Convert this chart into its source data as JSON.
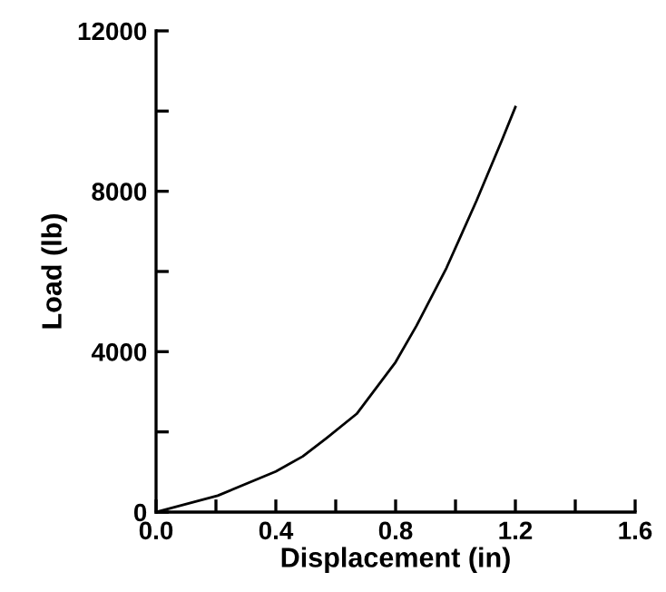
{
  "chart_data": {
    "type": "line",
    "xlabel": "Displacement (in)",
    "ylabel": "Load (lb)",
    "xlim": [
      0,
      1.6
    ],
    "ylim": [
      0,
      12000
    ],
    "xticks": [
      {
        "value": 0,
        "label": "0.0"
      },
      {
        "value": 0.2,
        "label": null
      },
      {
        "value": 0.4,
        "label": "0.4"
      },
      {
        "value": 0.6,
        "label": null
      },
      {
        "value": 0.8,
        "label": "0.8"
      },
      {
        "value": 1.0,
        "label": null
      },
      {
        "value": 1.2,
        "label": "1.2"
      },
      {
        "value": 1.4,
        "label": null
      },
      {
        "value": 1.6,
        "label": "1.6"
      }
    ],
    "yticks": [
      0,
      {
        "value": 2000,
        "label": null
      },
      4000,
      {
        "value": 6000,
        "label": null
      },
      8000,
      {
        "value": 10000,
        "label": null
      },
      12000
    ],
    "grid": false,
    "legend": false,
    "marker": "none",
    "line_style": "solid",
    "series": [
      {
        "color": "#000000",
        "x": [
          0,
          0.206,
          0.4,
          0.49,
          0.57,
          0.67,
          0.8,
          0.87,
          0.97,
          1.07,
          1.155,
          1.2
        ],
        "values": [
          0,
          410,
          1015,
          1390,
          1850,
          2450,
          3740,
          4650,
          6090,
          7760,
          9270,
          10100
        ]
      }
    ]
  }
}
